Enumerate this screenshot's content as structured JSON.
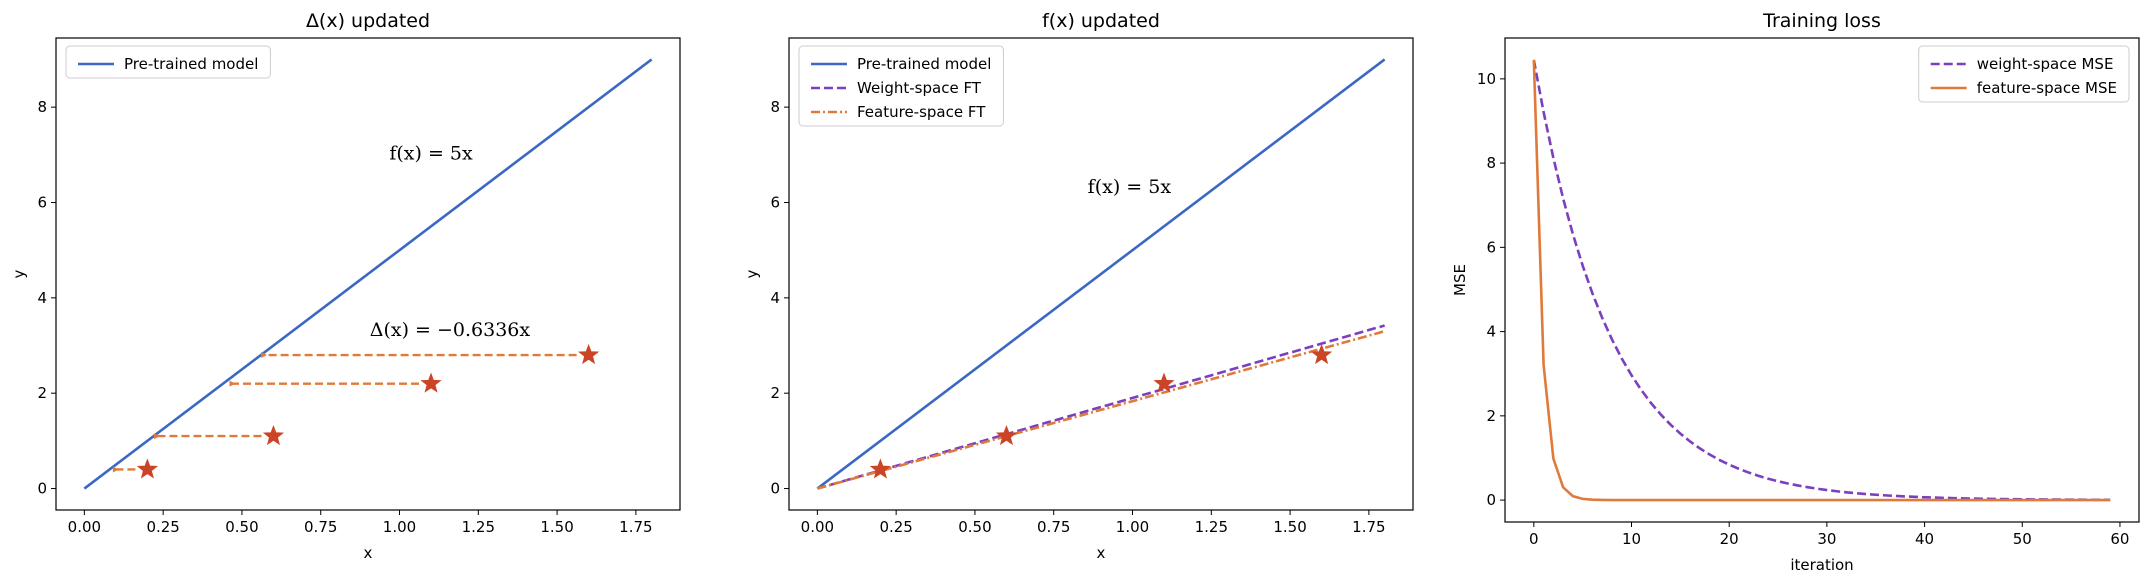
{
  "colors": {
    "pretrained": "#3b68c3",
    "weight": "#7b3fbf",
    "feature": "#e07a3a",
    "star": "#cc4426"
  },
  "chart_data": [
    {
      "type": "line",
      "title": "Δ(x) updated",
      "xlabel": "x",
      "ylabel": "y",
      "xlim": [
        -0.09,
        1.89
      ],
      "ylim": [
        -0.45,
        9.45
      ],
      "xticks": [
        0.0,
        0.25,
        0.5,
        0.75,
        1.0,
        1.25,
        1.5,
        1.75
      ],
      "xtick_labels": [
        "0.00",
        "0.25",
        "0.50",
        "0.75",
        "1.00",
        "1.25",
        "1.50",
        "1.75"
      ],
      "yticks": [
        0,
        2,
        4,
        6,
        8
      ],
      "ytick_labels": [
        "0",
        "2",
        "4",
        "6",
        "8"
      ],
      "series": [
        {
          "name": "Pre-trained model",
          "style": "solid",
          "color_key": "pretrained",
          "x": [
            0,
            1.8
          ],
          "y": [
            0,
            9
          ]
        }
      ],
      "points": {
        "x": [
          0.2,
          0.6,
          1.1,
          1.6
        ],
        "y": [
          0.4,
          1.1,
          2.2,
          2.8
        ],
        "marker": "star"
      },
      "arrows": [
        {
          "from": [
            0.2,
            0.4
          ],
          "to": [
            0.1,
            0.4
          ]
        },
        {
          "from": [
            0.6,
            1.1
          ],
          "to": [
            0.23,
            1.1
          ]
        },
        {
          "from": [
            1.1,
            2.2
          ],
          "to": [
            0.47,
            2.2
          ]
        },
        {
          "from": [
            1.6,
            2.8
          ],
          "to": [
            0.57,
            2.8
          ]
        }
      ],
      "annotations": [
        {
          "text": "f(x) = 5x",
          "x": 1.1,
          "y": 6.9
        },
        {
          "text": "Δ(x) = −0.6336x",
          "x": 1.16,
          "y": 3.2
        }
      ],
      "legend": {
        "position": "top-left",
        "entries": [
          "Pre-trained model"
        ]
      }
    },
    {
      "type": "line",
      "title": "f(x) updated",
      "xlabel": "x",
      "ylabel": "y",
      "xlim": [
        -0.09,
        1.89
      ],
      "ylim": [
        -0.45,
        9.45
      ],
      "xticks": [
        0.0,
        0.25,
        0.5,
        0.75,
        1.0,
        1.25,
        1.5,
        1.75
      ],
      "xtick_labels": [
        "0.00",
        "0.25",
        "0.50",
        "0.75",
        "1.00",
        "1.25",
        "1.50",
        "1.75"
      ],
      "yticks": [
        0,
        2,
        4,
        6,
        8
      ],
      "ytick_labels": [
        "0",
        "2",
        "4",
        "6",
        "8"
      ],
      "series": [
        {
          "name": "Pre-trained model",
          "style": "solid",
          "color_key": "pretrained",
          "x": [
            0,
            1.8
          ],
          "y": [
            0,
            9
          ]
        },
        {
          "name": "Weight-space FT",
          "style": "dashed",
          "color_key": "weight",
          "x": [
            0,
            1.8
          ],
          "y": [
            0,
            3.42
          ]
        },
        {
          "name": "Feature-space FT",
          "style": "dashdot",
          "color_key": "feature",
          "x": [
            0,
            1.8
          ],
          "y": [
            0,
            3.3
          ]
        }
      ],
      "points": {
        "x": [
          0.2,
          0.6,
          1.1,
          1.6
        ],
        "y": [
          0.4,
          1.1,
          2.2,
          2.8
        ],
        "marker": "star"
      },
      "arrows": [],
      "annotations": [
        {
          "text": "f(x) = 5x",
          "x": 0.99,
          "y": 6.2
        }
      ],
      "legend": {
        "position": "top-left",
        "entries": [
          "Pre-trained model",
          "Weight-space FT",
          "Feature-space FT"
        ]
      }
    },
    {
      "type": "line",
      "title": "Training loss",
      "xlabel": "iteration",
      "ylabel": "MSE",
      "xlim": [
        -2.95,
        61.95
      ],
      "ylim": [
        -0.52,
        10.97
      ],
      "xticks": [
        0,
        10,
        20,
        30,
        40,
        50,
        60
      ],
      "xtick_labels": [
        "0",
        "10",
        "20",
        "30",
        "40",
        "50",
        "60"
      ],
      "yticks": [
        0,
        2,
        4,
        6,
        8,
        10
      ],
      "ytick_labels": [
        "0",
        "2",
        "4",
        "6",
        "8",
        "10"
      ],
      "series": [
        {
          "name": "weight-space MSE",
          "style": "dashed",
          "color_key": "weight",
          "x_start": 0,
          "x_end": 59,
          "initial": 10.45,
          "decay_rate": 0.126
        },
        {
          "name": "feature-space MSE",
          "style": "solid",
          "color_key": "feature",
          "x_start": 0,
          "x_end": 59,
          "initial": 10.45,
          "decay_rate": 1.18
        }
      ],
      "legend": {
        "position": "top-right",
        "entries": [
          "weight-space MSE",
          "feature-space MSE"
        ]
      }
    }
  ]
}
